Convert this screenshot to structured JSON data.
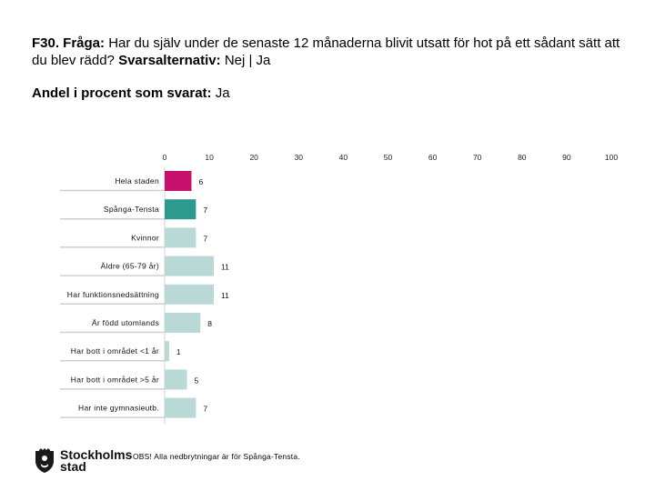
{
  "header": {
    "question_prefix": "F30. Fråga:",
    "question_text": "Har du själv under de senaste 12 månaderna blivit utsatt för hot på ett sådant sätt att du blev rädd?",
    "answer_prefix": "Svarsalternativ:",
    "answer_text": "Nej | Ja",
    "subtitle_prefix": "Andel i procent som svarat:",
    "subtitle_value": "Ja"
  },
  "chart_data": {
    "type": "bar",
    "orientation": "horizontal",
    "xlim": [
      0,
      100
    ],
    "x_ticks": [
      0,
      10,
      20,
      30,
      40,
      50,
      60,
      70,
      80,
      90,
      100
    ],
    "categories": [
      "Hela staden",
      "Spånga-Tensta",
      "Kvinnor",
      "Äldre (65-79 år)",
      "Har funktionsnedsättning",
      "Är född utomlands",
      "Har bott i området <1 år",
      "Har bott i området >5 år",
      "Har inte gymnasieutb."
    ],
    "values": [
      6,
      7,
      7,
      11,
      11,
      8,
      1,
      5,
      7
    ],
    "bar_colors": [
      "#c8106e",
      "#2c9b8e",
      "#b9d9d6",
      "#b9d9d6",
      "#b9d9d6",
      "#b9d9d6",
      "#b9d9d6",
      "#b9d9d6",
      "#b9d9d6"
    ],
    "grid": false,
    "legend": "none"
  },
  "footer": {
    "logo_line1": "Stockholms",
    "logo_line2": "stad",
    "note": "OBS! Alla nedbrytningar är för Spånga-Tensta."
  }
}
